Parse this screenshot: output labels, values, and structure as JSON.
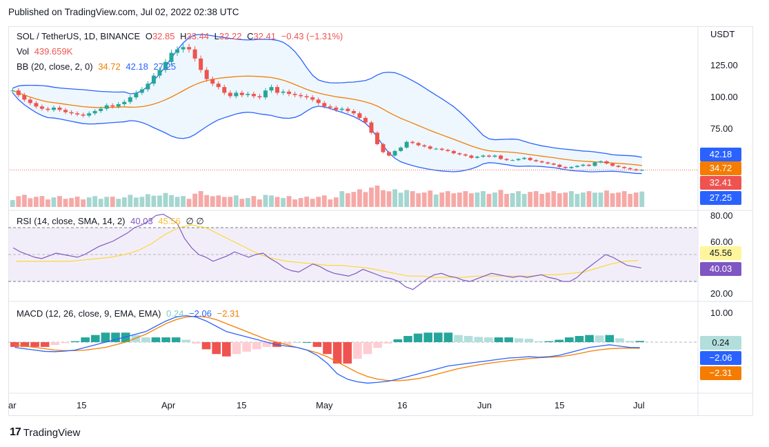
{
  "header": {
    "published": "Published on TradingView.com, Jul 02, 2022 02:38 UTC"
  },
  "price_pane": {
    "symbol": "SOL / TetherUS, 1D, BINANCE",
    "o_label": "O",
    "o": "32.85",
    "h_label": "H",
    "h": "33.44",
    "l_label": "L",
    "l": "32.22",
    "c_label": "C",
    "c": "32.41",
    "change": "−0.43 (−1.31%)",
    "vol_label": "Vol",
    "vol": "439.659K",
    "bb_label": "BB (20, close, 2, 0)",
    "bb_basis": "34.72",
    "bb_upper": "42.18",
    "bb_lower": "27.25",
    "currency": "USDT",
    "axis": [
      "125.00",
      "100.00",
      "75.00"
    ],
    "tags": {
      "upper": "42.18",
      "basis": "34.72",
      "price": "32.41",
      "lower": "27.25"
    }
  },
  "rsi_pane": {
    "label": "RSI (14, close, SMA, 14, 2)",
    "rsi": "40.03",
    "sma": "45.56",
    "extra": "∅ ∅",
    "axis": [
      "80.00",
      "60.00",
      "20.00"
    ],
    "tags": {
      "sma": "45.56",
      "rsi": "40.03"
    }
  },
  "macd_pane": {
    "label": "MACD (12, 26, close, 9, EMA, EMA)",
    "hist": "0.24",
    "macd": "−2.06",
    "signal": "−2.31",
    "axis": [
      "10.00"
    ],
    "tags": {
      "hist": "0.24",
      "macd": "−2.06",
      "signal": "−2.31"
    }
  },
  "x_axis": [
    "ar",
    "15",
    "Apr",
    "15",
    "May",
    "16",
    "Jun",
    "15",
    "Jul"
  ],
  "brand": "TradingView",
  "colors": {
    "up": "#26a69a",
    "down": "#ef5350",
    "bb": "#2962ff",
    "basis": "#f57c00",
    "rsi": "#7e57c2",
    "rsi_sma": "#fdd835",
    "macd": "#2962ff",
    "signal": "#f57c00"
  },
  "chart_data": {
    "type": "candlestick",
    "title": "SOL / TetherUS, 1D, BINANCE",
    "x_start": "2022-03-02",
    "x_end": "2022-07-02",
    "close": [
      102,
      98,
      94,
      91,
      88,
      86,
      85,
      87,
      85,
      83,
      82,
      81,
      80,
      82,
      84,
      86,
      89,
      88,
      90,
      92,
      96,
      100,
      103,
      108,
      115,
      120,
      127,
      135,
      138,
      140,
      138,
      130,
      120,
      112,
      108,
      105,
      100,
      97,
      100,
      98,
      99,
      97,
      96,
      102,
      105,
      100,
      101,
      99,
      98,
      97,
      96,
      94,
      91,
      88,
      87,
      85,
      86,
      84,
      82,
      78,
      74,
      65,
      55,
      48,
      45,
      49,
      52,
      57,
      56,
      54,
      53,
      51,
      51,
      50,
      49,
      47,
      46,
      45,
      43,
      44,
      45,
      44,
      45,
      42,
      41,
      41,
      42,
      43,
      41,
      40,
      39,
      38,
      37,
      35,
      34,
      35,
      36,
      37,
      36,
      39,
      40,
      38,
      36,
      35,
      34,
      33,
      32,
      32.41
    ],
    "ylim": [
      0,
      145
    ],
    "volume_max_rel": 1.0,
    "rsi": [
      55,
      52,
      50,
      48,
      47,
      49,
      51,
      50,
      49,
      48,
      50,
      53,
      56,
      58,
      60,
      63,
      66,
      70,
      72,
      75,
      79,
      80,
      77,
      73,
      62,
      55,
      50,
      48,
      45,
      47,
      49,
      52,
      50,
      48,
      50,
      51,
      47,
      44,
      40,
      38,
      37,
      40,
      43,
      41,
      38,
      36,
      35,
      34,
      36,
      39,
      37,
      35,
      33,
      32,
      30,
      26,
      24,
      28,
      32,
      35,
      36,
      34,
      33,
      31,
      30,
      32,
      34,
      36,
      35,
      34,
      33,
      34,
      33,
      34,
      35,
      33,
      32,
      30,
      30,
      33,
      38,
      42,
      46,
      50,
      48,
      45,
      42,
      41,
      40.03
    ],
    "rsi_sma": [
      45,
      45,
      45,
      45,
      45,
      46,
      47,
      48,
      50,
      53,
      58,
      65,
      70,
      72,
      70,
      65,
      60,
      55,
      50,
      47,
      45,
      44,
      43,
      42,
      42,
      41,
      40,
      38,
      36,
      34,
      34,
      33,
      33,
      33,
      34,
      34,
      34,
      34,
      34,
      35,
      35,
      36,
      37,
      40,
      43,
      45,
      45.56
    ],
    "rsi_ylim": [
      15,
      85
    ],
    "macd": [
      -2,
      -2.5,
      -3,
      -3.5,
      -3.6,
      -3.4,
      -3,
      -2,
      -1,
      0,
      1,
      2,
      3,
      4,
      6,
      8,
      9.5,
      10,
      9.5,
      8,
      6,
      4,
      3,
      2,
      1,
      0,
      -1,
      -1.5,
      -2,
      -3,
      -5,
      -8,
      -12,
      -14,
      -15,
      -15.5,
      -15.2,
      -14.8,
      -14,
      -13,
      -12,
      -11,
      -10,
      -9,
      -8.5,
      -8,
      -7.5,
      -7,
      -6.5,
      -6,
      -5.8,
      -5.5,
      -5.7,
      -5.5,
      -5,
      -4,
      -3,
      -2,
      -1.5,
      -1,
      -1.5,
      -2,
      -2.06
    ],
    "signal": [
      -1,
      -1.5,
      -2,
      -2.5,
      -3,
      -3.2,
      -3.2,
      -3,
      -2.5,
      -2,
      -1,
      0,
      1.5,
      3,
      5,
      7,
      8.5,
      9.5,
      9.8,
      9.5,
      8.5,
      7,
      5.5,
      4,
      2.5,
      1,
      0,
      -1,
      -2,
      -3,
      -4,
      -5.5,
      -7.5,
      -9.5,
      -11.5,
      -13,
      -14,
      -14.5,
      -14.6,
      -14.3,
      -13.8,
      -13,
      -12,
      -11,
      -10,
      -9.3,
      -8.6,
      -8,
      -7.5,
      -7,
      -6.6,
      -6.2,
      -5.9,
      -5.7,
      -5.5,
      -5,
      -4.3,
      -3.5,
      -2.9,
      -2.5,
      -2.3,
      -2.25,
      -2.31
    ],
    "macd_ylim": [
      -18,
      12
    ]
  }
}
